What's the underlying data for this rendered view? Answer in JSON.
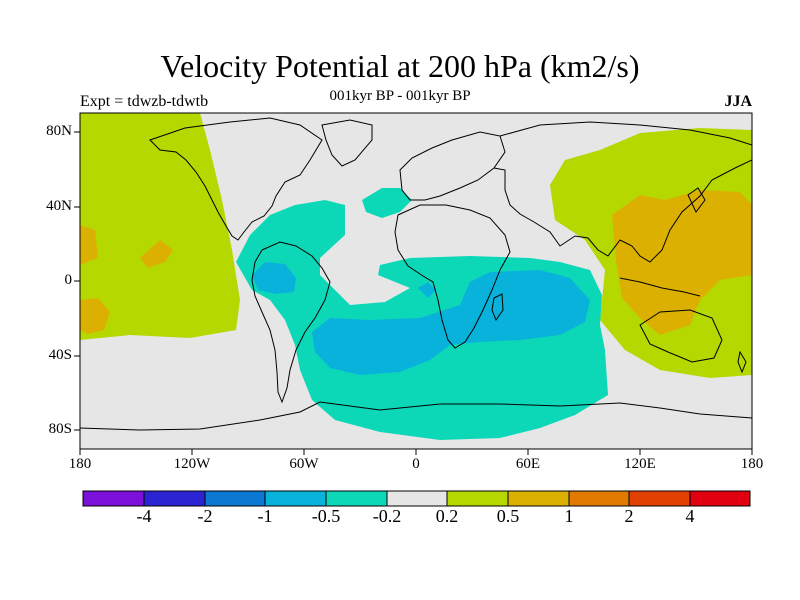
{
  "title": "Velocity Potential at 200 hPa (km2/s)",
  "subtitle": "001kyr BP - 001kyr BP",
  "experiment": "Expt = tdwzb-tdwtb",
  "season": "JJA",
  "axes": {
    "lat_labels": [
      "80N",
      "40N",
      "0",
      "40S",
      "80S"
    ],
    "lon_labels": [
      "180",
      "120W",
      "60W",
      "0",
      "60E",
      "120E",
      "180"
    ]
  },
  "colorbar": {
    "labels": [
      "-4",
      "-2",
      "-1",
      "-0.5",
      "-0.2",
      "0.2",
      "0.5",
      "1",
      "2",
      "4"
    ],
    "colors": [
      "#7b10d8",
      "#2a24d2",
      "#0b78d2",
      "#08b2da",
      "#0cd8b8",
      "#e6e6e6",
      "#b4d800",
      "#dcb000",
      "#e07a00",
      "#e04000",
      "#e00010"
    ]
  },
  "fill_colors": {
    "neg_light": "#0cd8b8",
    "neg_mid": "#08b2da",
    "pos_light": "#b4d800",
    "pos_mid": "#dcb000",
    "neutral": "#e6e6e6"
  }
}
